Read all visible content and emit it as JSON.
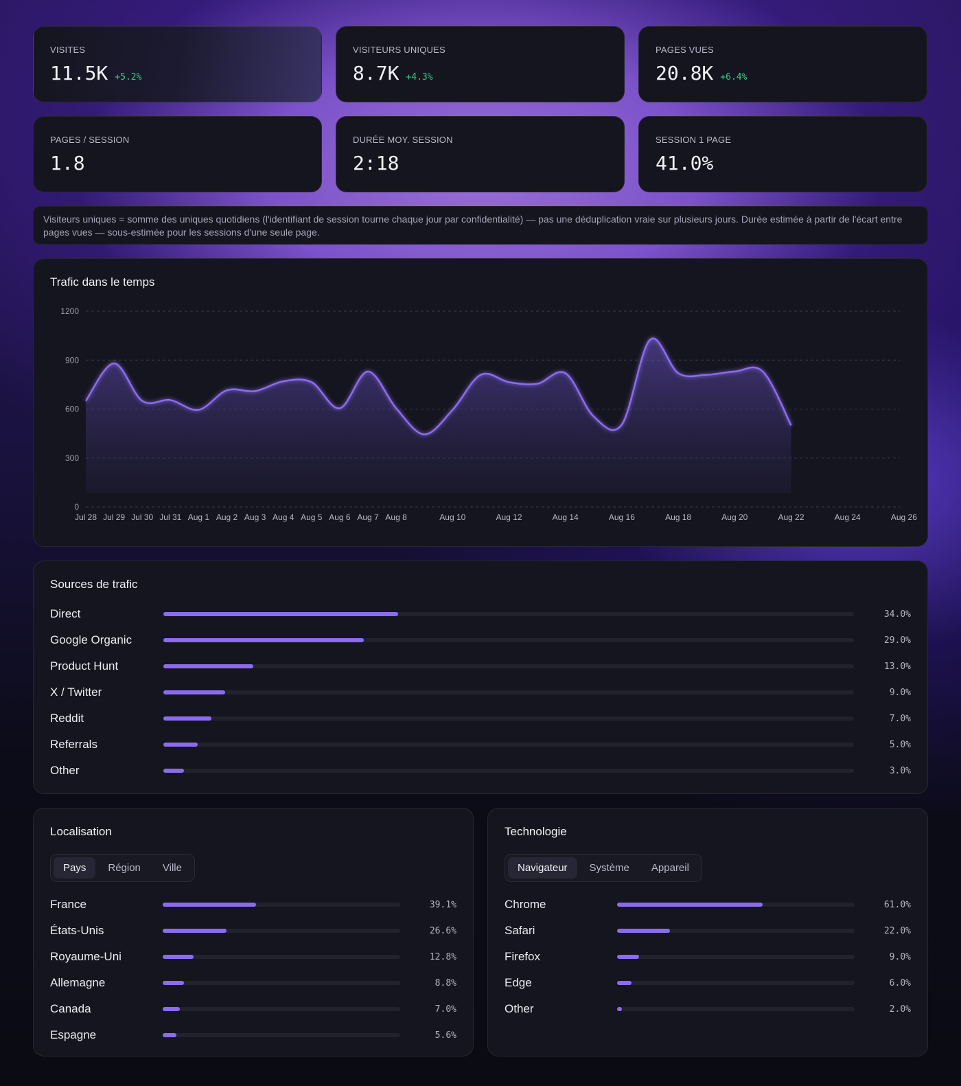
{
  "kpis": [
    {
      "label": "VISITES",
      "value": "11.5K",
      "delta": "+5.2%"
    },
    {
      "label": "VISITEURS UNIQUES",
      "value": "8.7K",
      "delta": "+4.3%"
    },
    {
      "label": "PAGES VUES",
      "value": "20.8K",
      "delta": "+6.4%"
    },
    {
      "label": "PAGES / SESSION",
      "value": "1.8",
      "delta": ""
    },
    {
      "label": "DURÉE MOY. SESSION",
      "value": "2:18",
      "delta": ""
    },
    {
      "label": "SESSION 1 PAGE",
      "value": "41.0%",
      "delta": ""
    }
  ],
  "note": "Visiteurs uniques = somme des uniques quotidiens (l'identifiant de session tourne chaque jour par confidentialité) — pas une déduplication vraie sur plusieurs jours. Durée estimée à partir de l'écart entre pages vues — sous-estimée pour les sessions d'une seule page.",
  "traffic": {
    "title": "Trafic dans le temps"
  },
  "chart_data": {
    "type": "area",
    "title": "Trafic dans le temps",
    "ylim": [
      0,
      1200
    ],
    "yticks": [
      0,
      300,
      600,
      900,
      1200
    ],
    "x_labels": [
      "Jul 28",
      "Jul 29",
      "Jul 30",
      "Jul 31",
      "Aug 1",
      "Aug 2",
      "Aug 3",
      "Aug 4",
      "Aug 5",
      "Aug 6",
      "Aug 7",
      "Aug 8",
      "Aug 10",
      "Aug 12",
      "Aug 14",
      "Aug 16",
      "Aug 18",
      "Aug 20",
      "Aug 22",
      "Aug 24",
      "Aug 26"
    ],
    "x": [
      "Jul 28",
      "Jul 29",
      "Jul 30",
      "Jul 31",
      "Aug 1",
      "Aug 2",
      "Aug 3",
      "Aug 4",
      "Aug 5",
      "Aug 6",
      "Aug 7",
      "Aug 8",
      "Aug 9",
      "Aug 10",
      "Aug 11",
      "Aug 12",
      "Aug 13",
      "Aug 14",
      "Aug 15",
      "Aug 16",
      "Aug 17",
      "Aug 18",
      "Aug 19",
      "Aug 20",
      "Aug 21",
      "Aug 22"
    ],
    "values": [
      650,
      880,
      650,
      655,
      595,
      715,
      710,
      770,
      765,
      605,
      830,
      605,
      445,
      595,
      810,
      765,
      755,
      820,
      555,
      505,
      1025,
      820,
      810,
      830,
      830,
      500
    ],
    "grid": true,
    "color": "#8b6cf0"
  },
  "sources": {
    "title": "Sources de trafic",
    "items": [
      {
        "label": "Direct",
        "pct": "34.0%",
        "value": 34.0
      },
      {
        "label": "Google Organic",
        "pct": "29.0%",
        "value": 29.0
      },
      {
        "label": "Product Hunt",
        "pct": "13.0%",
        "value": 13.0
      },
      {
        "label": "X / Twitter",
        "pct": "9.0%",
        "value": 9.0
      },
      {
        "label": "Reddit",
        "pct": "7.0%",
        "value": 7.0
      },
      {
        "label": "Referrals",
        "pct": "5.0%",
        "value": 5.0
      },
      {
        "label": "Other",
        "pct": "3.0%",
        "value": 3.0
      }
    ]
  },
  "location": {
    "title": "Localisation",
    "tabs": [
      "Pays",
      "Région",
      "Ville"
    ],
    "active_tab": "Pays",
    "items": [
      {
        "label": "France",
        "pct": "39.1%",
        "value": 39.1
      },
      {
        "label": "États-Unis",
        "pct": "26.6%",
        "value": 26.6
      },
      {
        "label": "Royaume-Uni",
        "pct": "12.8%",
        "value": 12.8
      },
      {
        "label": "Allemagne",
        "pct": "8.8%",
        "value": 8.8
      },
      {
        "label": "Canada",
        "pct": "7.0%",
        "value": 7.0
      },
      {
        "label": "Espagne",
        "pct": "5.6%",
        "value": 5.6
      }
    ]
  },
  "technology": {
    "title": "Technologie",
    "tabs": [
      "Navigateur",
      "Système",
      "Appareil"
    ],
    "active_tab": "Navigateur",
    "items": [
      {
        "label": "Chrome",
        "pct": "61.0%",
        "value": 61.0
      },
      {
        "label": "Safari",
        "pct": "22.0%",
        "value": 22.0
      },
      {
        "label": "Firefox",
        "pct": "9.0%",
        "value": 9.0
      },
      {
        "label": "Edge",
        "pct": "6.0%",
        "value": 6.0
      },
      {
        "label": "Other",
        "pct": "2.0%",
        "value": 2.0
      }
    ]
  }
}
